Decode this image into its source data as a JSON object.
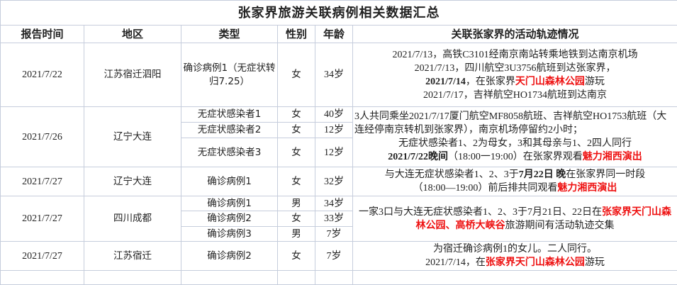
{
  "title": "张家界旅游关联病例相关数据汇总",
  "headers": [
    "报告时间",
    "地区",
    "类型",
    "性别",
    "年龄",
    "关联张家界的活动轨迹情况"
  ],
  "rows": [
    {
      "date": "2021/7/22",
      "region": "江苏宿迁泗阳",
      "cases": [
        {
          "type": "确诊病例1（无症状转归7.25）",
          "sex": "女",
          "age": "34岁"
        }
      ],
      "track": {
        "l1": "2021/7/13，高铁C3101经南京南站转乘地铁到达南京机场",
        "l2": "2021/7/13，四川航空3U3756航班到达张家界，",
        "l3b": "2021/7/14",
        "l3a": "，在张家界",
        "l3r": "天门山森林公园",
        "l3c": "游玩",
        "l4": "2021/7/17，吉祥航空HO1734航班到达南京"
      }
    },
    {
      "date": "2021/7/26",
      "region": "辽宁大连",
      "cases": [
        {
          "type": "无症状感染者1",
          "sex": "女",
          "age": "40岁"
        },
        {
          "type": "无症状感染者2",
          "sex": "女",
          "age": "12岁"
        },
        {
          "type": "无症状感染者3",
          "sex": "女",
          "age": "12岁"
        }
      ],
      "track": {
        "l1": "3人共同乘坐2021/7/17厦门航空MF8058航班、吉祥航空HO1753航班（大连经停南京转机到张家界），南京机场停留约2小时；",
        "l2": "无症状感染者1、2为母女，3和其母亲与1、2四人同行",
        "l3b": "2021/7/22晚间",
        "l3a": "（18:00一19:00）在张家界观看",
        "l3r": "魅力湘西演出"
      }
    },
    {
      "date": "2021/7/27",
      "region": "辽宁大连",
      "cases": [
        {
          "type": "确诊病例1",
          "sex": "女",
          "age": "32岁"
        }
      ],
      "track": {
        "l1a": "与大连无症状感染者1、2、3于",
        "l1b": "7月22日 晚",
        "l1c": "在张家界同一时段",
        "l2a": "（18:00—19:00）前后排共同观看",
        "l2r": "魅力湘西演出"
      }
    },
    {
      "date": "2021/7/27",
      "region": "四川成都",
      "cases": [
        {
          "type": "确诊病例1",
          "sex": "男",
          "age": "34岁"
        },
        {
          "type": "确诊病例2",
          "sex": "女",
          "age": "33岁"
        },
        {
          "type": "确诊病例3",
          "sex": "男",
          "age": "7岁"
        }
      ],
      "track": {
        "l1a": "一家3口与大连无症状感染者1、2、3于7月21日、22日在",
        "l1r": "张家界天门山森林公园、高桥大峡谷",
        "l1c": "旅游期间有活动轨迹交集"
      }
    },
    {
      "date": "2021/7/27",
      "region": "江苏宿迁",
      "cases": [
        {
          "type": "确诊病例2",
          "sex": "女",
          "age": "7岁"
        }
      ],
      "track": {
        "l1": "为宿迁确诊病例1的女儿。二人同行。",
        "l2a": "2021/7/14，在",
        "l2r": "张家界天门山森林公园",
        "l2c": "游玩"
      }
    }
  ],
  "colors": {
    "highlight": "#ee1111",
    "border": "#c6cddc"
  }
}
